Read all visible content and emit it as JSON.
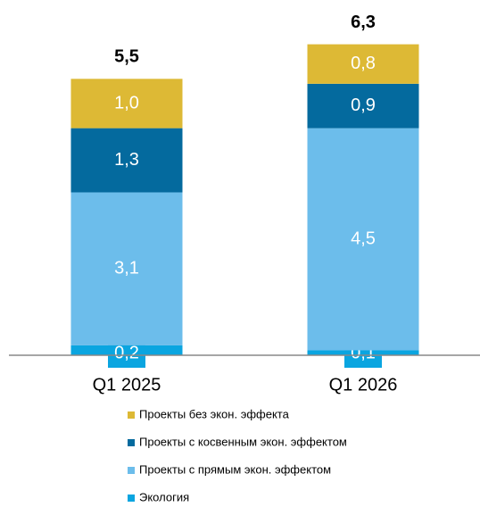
{
  "chart_data": {
    "type": "stacked_bar",
    "categories": [
      "Q1 2025",
      "Q1 2026"
    ],
    "series": [
      {
        "name": "Экология",
        "color": "#0aa5e0",
        "values": [
          0.2,
          0.1
        ],
        "value_labels": [
          "0,2",
          "0,1"
        ]
      },
      {
        "name": "Проекты с прямым экон. эффектом",
        "color": "#6cbdeb",
        "values": [
          3.1,
          4.5
        ],
        "value_labels": [
          "3,1",
          "4,5"
        ]
      },
      {
        "name": "Проекты с косвенным экон. эффектом",
        "color": "#046a9e",
        "values": [
          1.3,
          0.9
        ],
        "value_labels": [
          "1,3",
          "0,9"
        ]
      },
      {
        "name": "Проекты без экон. эффекта",
        "color": "#ddb935",
        "values": [
          1.0,
          0.8
        ],
        "value_labels": [
          "1,0",
          "0,8"
        ]
      }
    ],
    "totals": [
      5.5,
      6.3
    ],
    "total_labels": [
      "5,5",
      "6,3"
    ]
  }
}
